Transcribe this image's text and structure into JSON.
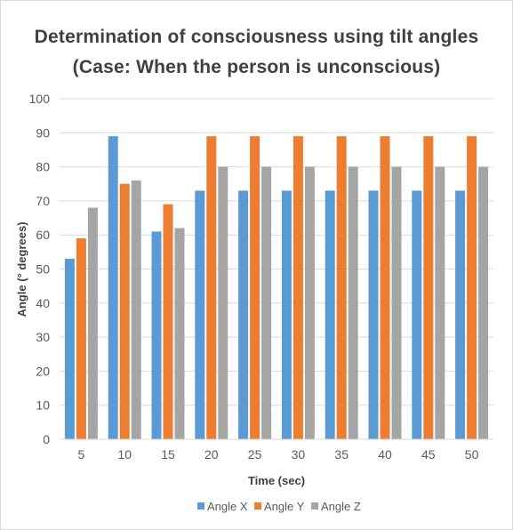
{
  "chart_data": {
    "type": "bar",
    "title": "Determination of consciousness using tilt angles",
    "subtitle": "(Case: When the person is unconscious)",
    "xlabel": "Time (sec)",
    "ylabel": "Angle (° degrees)",
    "ylim": [
      0,
      100
    ],
    "yticks": [
      "0",
      "10",
      "20",
      "30",
      "40",
      "50",
      "60",
      "70",
      "80",
      "90",
      "100"
    ],
    "grid": true,
    "legend_position": "bottom",
    "categories": [
      "5",
      "10",
      "15",
      "20",
      "25",
      "30",
      "35",
      "40",
      "45",
      "50"
    ],
    "series": [
      {
        "name": "Angle X",
        "color": "#5b9bd5",
        "values": [
          53,
          89,
          61,
          73,
          73,
          73,
          73,
          73,
          73,
          73
        ]
      },
      {
        "name": "Angle Y",
        "color": "#ed7d31",
        "values": [
          59,
          75,
          69,
          89,
          89,
          89,
          89,
          89,
          89,
          89
        ]
      },
      {
        "name": "Angle Z",
        "color": "#a5a5a5",
        "values": [
          68,
          76,
          62,
          80,
          80,
          80,
          80,
          80,
          80,
          80
        ]
      }
    ]
  }
}
